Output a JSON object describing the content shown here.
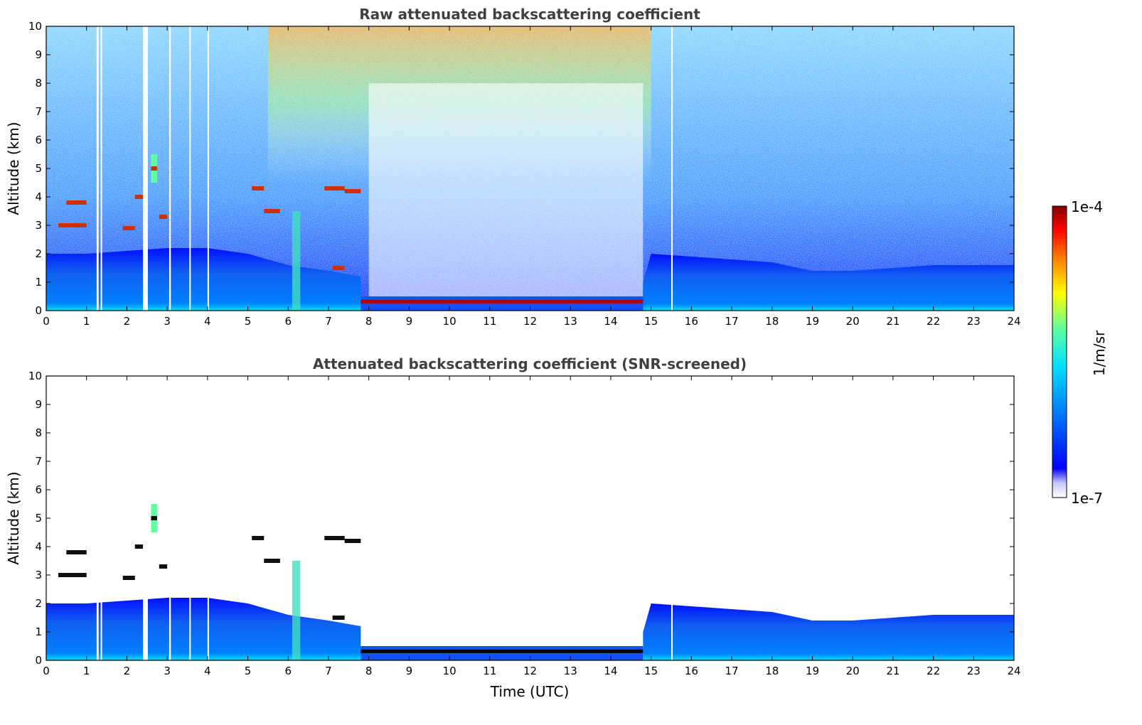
{
  "chart_data": [
    {
      "type": "heatmap",
      "title": "Raw attenuated backscattering coefficient",
      "xlabel": "",
      "ylabel": "Altitude (km)",
      "xlim": [
        0,
        24
      ],
      "ylim": [
        0,
        10
      ],
      "x_ticks": [
        "0",
        "1",
        "2",
        "3",
        "4",
        "5",
        "6",
        "7",
        "8",
        "9",
        "10",
        "11",
        "12",
        "13",
        "14",
        "15",
        "16",
        "17",
        "18",
        "19",
        "20",
        "21",
        "22",
        "23",
        "24"
      ],
      "y_ticks": [
        "0",
        "1",
        "2",
        "3",
        "4",
        "5",
        "6",
        "7",
        "8",
        "9",
        "10"
      ],
      "features": {
        "boundary_layer_top_km": [
          [
            0,
            2.0
          ],
          [
            1,
            2.0
          ],
          [
            2,
            2.1
          ],
          [
            3,
            2.2
          ],
          [
            4,
            2.2
          ],
          [
            5,
            2.0
          ],
          [
            6,
            1.6
          ],
          [
            7,
            1.4
          ],
          [
            7.8,
            1.2
          ],
          [
            14.8,
            1.0
          ],
          [
            15,
            2.0
          ],
          [
            16,
            1.9
          ],
          [
            17,
            1.8
          ],
          [
            18,
            1.7
          ],
          [
            19,
            1.4
          ],
          [
            20,
            1.4
          ],
          [
            21,
            1.5
          ],
          [
            22,
            1.6
          ],
          [
            23,
            1.6
          ],
          [
            24,
            1.6
          ]
        ],
        "low_cloud_layer": {
          "x_start": 7.8,
          "x_end": 14.8,
          "altitude_km": 0.3
        },
        "elevated_layers": [
          {
            "x_start": 0.3,
            "x_end": 1.0,
            "altitude_km": 3.0
          },
          {
            "x_start": 0.5,
            "x_end": 1.0,
            "altitude_km": 3.8
          },
          {
            "x_start": 1.9,
            "x_end": 2.2,
            "altitude_km": 2.9
          },
          {
            "x_start": 2.2,
            "x_end": 2.4,
            "altitude_km": 4.0
          },
          {
            "x_start": 2.6,
            "x_end": 2.75,
            "altitude_km": 5.0
          },
          {
            "x_start": 2.8,
            "x_end": 3.0,
            "altitude_km": 3.3
          },
          {
            "x_start": 5.1,
            "x_end": 5.4,
            "altitude_km": 4.3
          },
          {
            "x_start": 5.4,
            "x_end": 5.8,
            "altitude_km": 3.5
          },
          {
            "x_start": 6.9,
            "x_end": 7.4,
            "altitude_km": 4.3
          },
          {
            "x_start": 7.4,
            "x_end": 7.8,
            "altitude_km": 4.2
          },
          {
            "x_start": 7.1,
            "x_end": 7.4,
            "altitude_km": 1.5
          }
        ]
      }
    },
    {
      "type": "heatmap",
      "title": "Attenuated backscattering coefficient (SNR-screened)",
      "xlabel": "Time (UTC)",
      "ylabel": "Altitude (km)",
      "xlim": [
        0,
        24
      ],
      "ylim": [
        0,
        10
      ],
      "x_ticks": [
        "0",
        "1",
        "2",
        "3",
        "4",
        "5",
        "6",
        "7",
        "8",
        "9",
        "10",
        "11",
        "12",
        "13",
        "14",
        "15",
        "16",
        "17",
        "18",
        "19",
        "20",
        "21",
        "22",
        "23",
        "24"
      ],
      "y_ticks": [
        "0",
        "1",
        "2",
        "3",
        "4",
        "5",
        "6",
        "7",
        "8",
        "9",
        "10"
      ]
    }
  ],
  "colorbar": {
    "label": "1/m/sr",
    "max_label": "1e-4",
    "min_label": "1e-7",
    "colors": [
      "#ffffff",
      "#0000ff",
      "#0080ff",
      "#00e0ff",
      "#60ffa0",
      "#ffff00",
      "#ff8000",
      "#ff0000",
      "#800000"
    ]
  }
}
